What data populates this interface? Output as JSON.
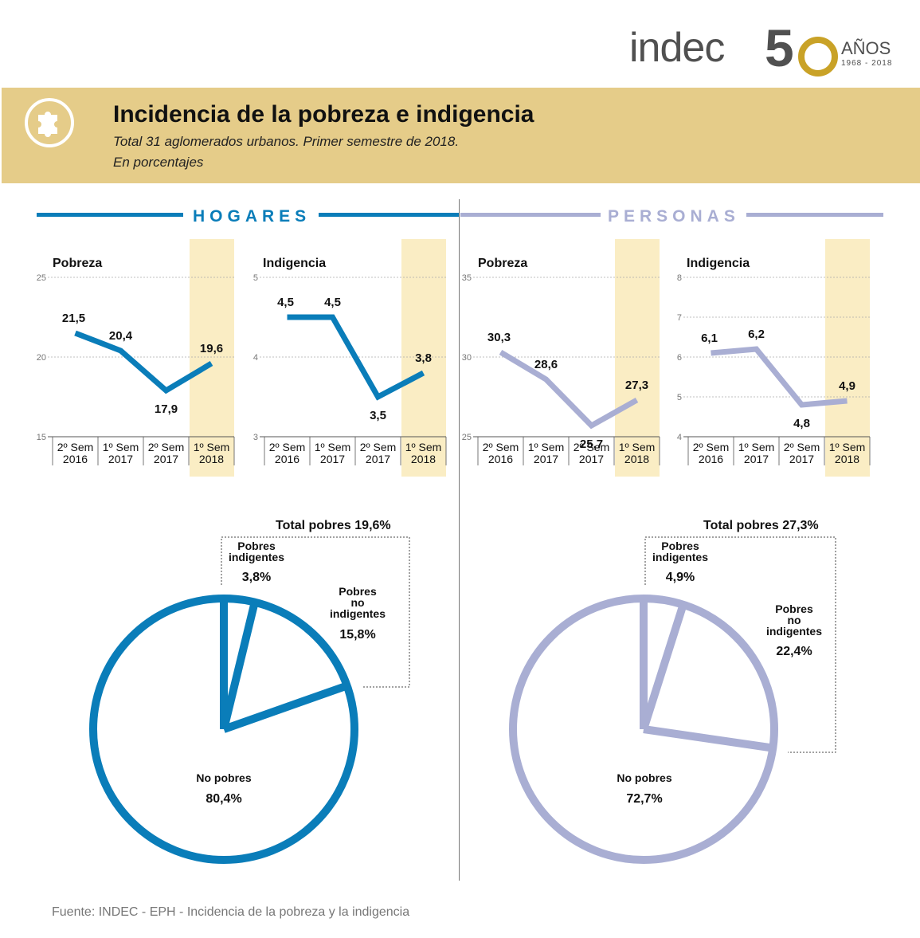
{
  "logo": {
    "brand": "indec",
    "five": "5",
    "anos": "AÑOS",
    "years": "1968 - 2018"
  },
  "header": {
    "title": "Incidencia de la pobreza e indigencia",
    "subtitle_line1": "Total 31 aglomerados urbanos. Primer semestre de 2018.",
    "subtitle_line2": "En porcentajes",
    "icon": "puzzle-piece-icon"
  },
  "colors": {
    "hogares": "#0a7db9",
    "personas": "#a9aed3",
    "highlight": "#faedc4",
    "header_bg": "#e5cc89"
  },
  "sections": {
    "hogares": "HOGARES",
    "personas": "PERSONAS"
  },
  "categories_top": [
    "2º Sem",
    "1º Sem",
    "2º Sem",
    "1º Sem"
  ],
  "categories_bottom": [
    "2016",
    "2017",
    "2017",
    "2018"
  ],
  "chart_data": [
    {
      "type": "line",
      "title": "Pobreza",
      "section": "HOGARES",
      "categories": [
        "2º Sem 2016",
        "1º Sem 2017",
        "2º Sem 2017",
        "1º Sem 2018"
      ],
      "values": [
        21.5,
        20.4,
        17.9,
        19.6
      ],
      "labels": [
        "21,5",
        "20,4",
        "17,9",
        "19,6"
      ],
      "ylim": [
        15,
        25
      ],
      "yticks": [
        "15",
        "20",
        "25"
      ],
      "grid": true
    },
    {
      "type": "line",
      "title": "Indigencia",
      "section": "HOGARES",
      "categories": [
        "2º Sem 2016",
        "1º Sem 2017",
        "2º Sem 2017",
        "1º Sem 2018"
      ],
      "values": [
        4.5,
        4.5,
        3.5,
        3.8
      ],
      "labels": [
        "4,5",
        "4,5",
        "3,5",
        "3,8"
      ],
      "ylim": [
        3,
        5
      ],
      "yticks": [
        "3",
        "4",
        "5"
      ],
      "grid": true
    },
    {
      "type": "line",
      "title": "Pobreza",
      "section": "PERSONAS",
      "categories": [
        "2º Sem 2016",
        "1º Sem 2017",
        "2º Sem 2017",
        "1º Sem 2018"
      ],
      "values": [
        30.3,
        28.6,
        25.7,
        27.3
      ],
      "labels": [
        "30,3",
        "28,6",
        "25,7",
        "27,3"
      ],
      "ylim": [
        25,
        35
      ],
      "yticks": [
        "25",
        "30",
        "35"
      ],
      "grid": true
    },
    {
      "type": "line",
      "title": "Indigencia",
      "section": "PERSONAS",
      "categories": [
        "2º Sem 2016",
        "1º Sem 2017",
        "2º Sem 2017",
        "1º Sem 2018"
      ],
      "values": [
        6.1,
        6.2,
        4.8,
        4.9
      ],
      "labels": [
        "6,1",
        "6,2",
        "4,8",
        "4,9"
      ],
      "ylim": [
        4,
        8
      ],
      "yticks": [
        "4",
        "5",
        "6",
        "7",
        "8"
      ],
      "grid": true
    },
    {
      "type": "pie",
      "section": "HOGARES",
      "total_label": "Total pobres 19,6%",
      "slices": [
        {
          "label": "Pobres indigentes",
          "value": 3.8,
          "text": "3,8%"
        },
        {
          "label": "Pobres no indigentes",
          "value": 15.8,
          "text": "15,8%"
        },
        {
          "label": "No pobres",
          "value": 80.4,
          "text": "80,4%"
        }
      ]
    },
    {
      "type": "pie",
      "section": "PERSONAS",
      "total_label": "Total pobres 27,3%",
      "slices": [
        {
          "label": "Pobres indigentes",
          "value": 4.9,
          "text": "4,9%"
        },
        {
          "label": "Pobres no indigentes",
          "value": 22.4,
          "text": "22,4%"
        },
        {
          "label": "No pobres",
          "value": 72.7,
          "text": "72,7%"
        }
      ]
    }
  ],
  "pie_labels": {
    "indigentes_l1": "Pobres",
    "indigentes_l2": "indigentes",
    "no_indigentes_l1": "Pobres",
    "no_indigentes_l2": "no",
    "no_indigentes_l3": "indigentes",
    "no_pobres": "No pobres"
  },
  "footer": "Fuente: INDEC - EPH - Incidencia de la pobreza y la indigencia"
}
